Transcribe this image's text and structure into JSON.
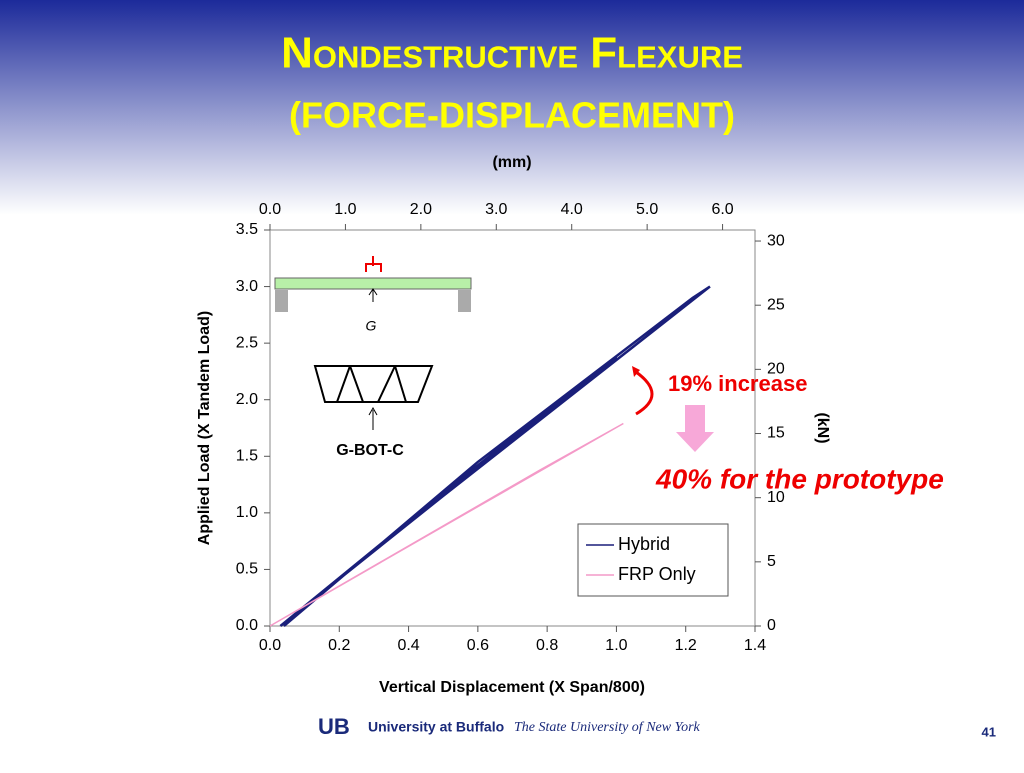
{
  "slide": {
    "title": "Nondestructive Flexure",
    "subtitle": "(FORCE-DISPLACEMENT)",
    "logo": "UB",
    "university": "University at Buffalo",
    "system": "The State University of New York",
    "page": "41"
  },
  "chart_data": {
    "type": "line",
    "xlabel": "Vertical Displacement (X Span/800)",
    "ylabel": "Applied Load (X Tandem Load)",
    "x2label": "(mm)",
    "y2label": "(kN)",
    "xlim": [
      0,
      1.4
    ],
    "xticks": [
      {
        "value": 0,
        "label": "0.0"
      },
      0.2,
      0.4,
      0.6,
      0.8,
      {
        "value": 1,
        "label": "1.0"
      },
      1.2,
      1.4
    ],
    "ylim": [
      0,
      3.5
    ],
    "yticks": [
      {
        "value": 0,
        "label": "0.0"
      },
      0.5,
      {
        "value": 1,
        "label": "1.0"
      },
      1.5,
      {
        "value": 2,
        "label": "2.0"
      },
      2.5,
      {
        "value": 3,
        "label": "3.0"
      },
      3.5
    ],
    "x2lim": [
      0,
      6.43
    ],
    "x2ticks": [
      {
        "value": 0,
        "label": "0.0"
      },
      {
        "value": 1,
        "label": "1.0"
      },
      {
        "value": 2,
        "label": "2.0"
      },
      {
        "value": 3,
        "label": "3.0"
      },
      {
        "value": 4,
        "label": "4.0"
      },
      {
        "value": 5,
        "label": "5.0"
      },
      {
        "value": 6,
        "label": "6.0"
      }
    ],
    "y2lim": [
      0,
      30.86
    ],
    "y2ticks": [
      0,
      5,
      10,
      15,
      20,
      25,
      30
    ],
    "series": [
      {
        "name": "Hybrid",
        "color": "#1a1f7a",
        "x": [
          0.03,
          0.45,
          1.0,
          0.55,
          0.05,
          0.5,
          1.27,
          1.22,
          0.6,
          0.04
        ],
        "values": [
          0,
          1.05,
          2.38,
          1.3,
          0.05,
          1.15,
          3.0,
          2.9,
          1.45,
          0
        ]
      },
      {
        "name": "FRP Only",
        "color": "#f49ac8",
        "x": [
          0,
          0.78,
          1.02,
          0.5,
          0
        ],
        "values": [
          0,
          1.38,
          1.79,
          0.88,
          0
        ]
      }
    ],
    "legend": "lower right",
    "annotations": [
      "19% increase",
      "40% for the prototype"
    ],
    "inset_labels": [
      "G",
      "G-BOT-C"
    ]
  }
}
